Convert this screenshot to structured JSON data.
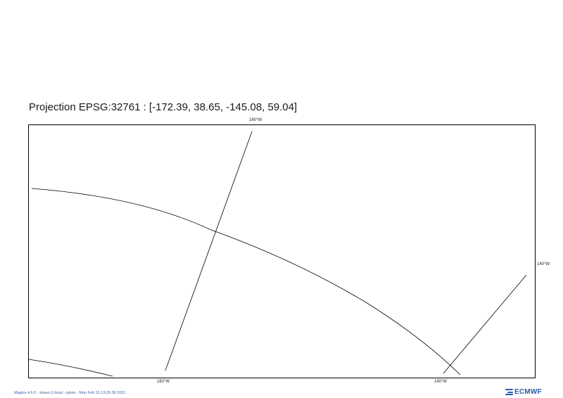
{
  "title": "Projection EPSG:32761 : [-172.39, 38.65, -145.08, 59.04]",
  "graticule_labels": {
    "top_160w": "160°W",
    "bottom_160w": "160°W",
    "bottom_140w": "140°W",
    "right_140w": "140°W"
  },
  "footer": {
    "meta": "Magics 4.6.0 - shaun-2.local - sylvie - Mon Feb 15 13:25:39 2021",
    "logo_text": "ECMWF"
  },
  "colors": {
    "frame": "#000000",
    "graticule": "#000000",
    "footer_text": "#3a5fa8",
    "logo": "#2a5aa8"
  }
}
